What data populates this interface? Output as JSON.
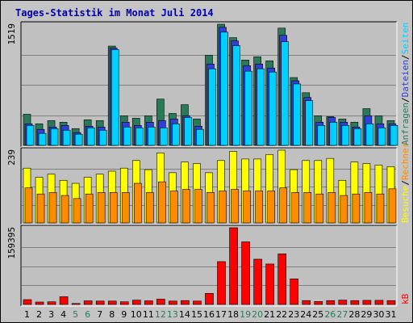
{
  "title": "Tages-Statistik im Monat Juli 2014",
  "colors": {
    "title": "#0000aa",
    "panel_bg": "#c0c0c0",
    "grid": "#808080",
    "hits": "#2a7a5a",
    "files": "#2f3fd8",
    "pages": "#00d0ff",
    "visits": "#ffff00",
    "sites": "#ff8c00",
    "kbytes": "#ff0000",
    "weekend_label": "#2a7a5a"
  },
  "chart_data": [
    {
      "type": "bar",
      "ymax_label": "1519",
      "ylim": [
        0,
        1519
      ],
      "legend_right": [
        {
          "text": "Anfragen",
          "color": "#2a7a5a"
        },
        {
          "text": "/",
          "color": "#000000"
        },
        {
          "text": "Dateien",
          "color": "#2f3fd8"
        },
        {
          "text": "/",
          "color": "#000000"
        },
        {
          "text": "Seiten",
          "color": "#00d0ff"
        }
      ],
      "categories": [
        "1",
        "2",
        "3",
        "4",
        "5",
        "6",
        "7",
        "8",
        "9",
        "10",
        "11",
        "12",
        "13",
        "14",
        "15",
        "16",
        "17",
        "18",
        "19",
        "20",
        "21",
        "22",
        "23",
        "24",
        "25",
        "26",
        "27",
        "28",
        "29",
        "30",
        "31"
      ],
      "series": [
        {
          "name": "Anfragen",
          "values": [
            390,
            270,
            310,
            290,
            210,
            320,
            310,
            1245,
            370,
            340,
            370,
            580,
            400,
            510,
            330,
            1130,
            1519,
            1350,
            1070,
            1110,
            1060,
            1470,
            850,
            660,
            370,
            360,
            330,
            290,
            460,
            370,
            310
          ]
        },
        {
          "name": "Dateien",
          "values": [
            270,
            200,
            230,
            250,
            160,
            240,
            230,
            1220,
            290,
            250,
            290,
            310,
            330,
            370,
            240,
            1020,
            1480,
            1310,
            1000,
            1020,
            970,
            1380,
            810,
            600,
            290,
            350,
            290,
            230,
            370,
            270,
            270
          ]
        },
        {
          "name": "Seiten",
          "values": [
            250,
            150,
            210,
            190,
            140,
            220,
            190,
            1200,
            230,
            220,
            230,
            220,
            270,
            350,
            200,
            960,
            1420,
            1250,
            930,
            960,
            920,
            1300,
            770,
            560,
            250,
            290,
            250,
            210,
            270,
            220,
            250
          ]
        }
      ]
    },
    {
      "type": "bar",
      "ymax_label": "239",
      "ylim": [
        0,
        239
      ],
      "legend_right": [
        {
          "text": "Besuche",
          "color": "#ffff00"
        },
        {
          "text": "/",
          "color": "#000000"
        },
        {
          "text": "Rechner",
          "color": "#ff8c00"
        }
      ],
      "categories": [
        "1",
        "2",
        "3",
        "4",
        "5",
        "6",
        "7",
        "8",
        "9",
        "10",
        "11",
        "12",
        "13",
        "14",
        "15",
        "16",
        "17",
        "18",
        "19",
        "20",
        "21",
        "22",
        "23",
        "24",
        "25",
        "26",
        "27",
        "28",
        "29",
        "30",
        "31"
      ],
      "series": [
        {
          "name": "Besuche",
          "values": [
            180,
            150,
            160,
            140,
            130,
            150,
            160,
            170,
            180,
            205,
            175,
            230,
            165,
            200,
            195,
            165,
            205,
            235,
            210,
            210,
            225,
            239,
            175,
            205,
            205,
            212,
            140,
            200,
            195,
            190,
            185
          ]
        },
        {
          "name": "Rechner",
          "values": [
            115,
            95,
            100,
            90,
            80,
            95,
            100,
            100,
            100,
            130,
            100,
            135,
            105,
            110,
            110,
            100,
            105,
            110,
            105,
            105,
            105,
            115,
            100,
            100,
            95,
            100,
            90,
            95,
            100,
            95,
            112
          ]
        }
      ]
    },
    {
      "type": "bar",
      "ymax_label": "159395",
      "ylim": [
        0,
        159395
      ],
      "legend_right": [
        {
          "text": "kB",
          "color": "#ff0000"
        }
      ],
      "categories": [
        "1",
        "2",
        "3",
        "4",
        "5",
        "6",
        "7",
        "8",
        "9",
        "10",
        "11",
        "12",
        "13",
        "14",
        "15",
        "16",
        "17",
        "18",
        "19",
        "20",
        "21",
        "22",
        "23",
        "24",
        "25",
        "26",
        "27",
        "28",
        "29",
        "30",
        "31"
      ],
      "series": [
        {
          "name": "kB",
          "values": [
            10000,
            5000,
            5500,
            16000,
            2000,
            7500,
            7000,
            7000,
            5500,
            9000,
            7500,
            11000,
            7000,
            8000,
            7000,
            23000,
            89000,
            159395,
            130000,
            94000,
            84000,
            105000,
            53000,
            8000,
            6000,
            8000,
            9000,
            8000,
            8500,
            8500,
            8000
          ]
        }
      ]
    }
  ],
  "day_labels": [
    {
      "text": "1",
      "weekend": false
    },
    {
      "text": "2",
      "weekend": false
    },
    {
      "text": "3",
      "weekend": false
    },
    {
      "text": "4",
      "weekend": false
    },
    {
      "text": "5",
      "weekend": true
    },
    {
      "text": "6",
      "weekend": true
    },
    {
      "text": "7",
      "weekend": false
    },
    {
      "text": "8",
      "weekend": false
    },
    {
      "text": "9",
      "weekend": false
    },
    {
      "text": "10",
      "weekend": false
    },
    {
      "text": "11",
      "weekend": false
    },
    {
      "text": "12",
      "weekend": true
    },
    {
      "text": "13",
      "weekend": true
    },
    {
      "text": "14",
      "weekend": false
    },
    {
      "text": "15",
      "weekend": false
    },
    {
      "text": "16",
      "weekend": false
    },
    {
      "text": "17",
      "weekend": false
    },
    {
      "text": "18",
      "weekend": false
    },
    {
      "text": "19",
      "weekend": true
    },
    {
      "text": "20",
      "weekend": true
    },
    {
      "text": "21",
      "weekend": false
    },
    {
      "text": "22",
      "weekend": false
    },
    {
      "text": "23",
      "weekend": false
    },
    {
      "text": "24",
      "weekend": false
    },
    {
      "text": "25",
      "weekend": false
    },
    {
      "text": "26",
      "weekend": true
    },
    {
      "text": "27",
      "weekend": true
    },
    {
      "text": "28",
      "weekend": false
    },
    {
      "text": "29",
      "weekend": false
    },
    {
      "text": "30",
      "weekend": false
    },
    {
      "text": "31",
      "weekend": false
    }
  ]
}
